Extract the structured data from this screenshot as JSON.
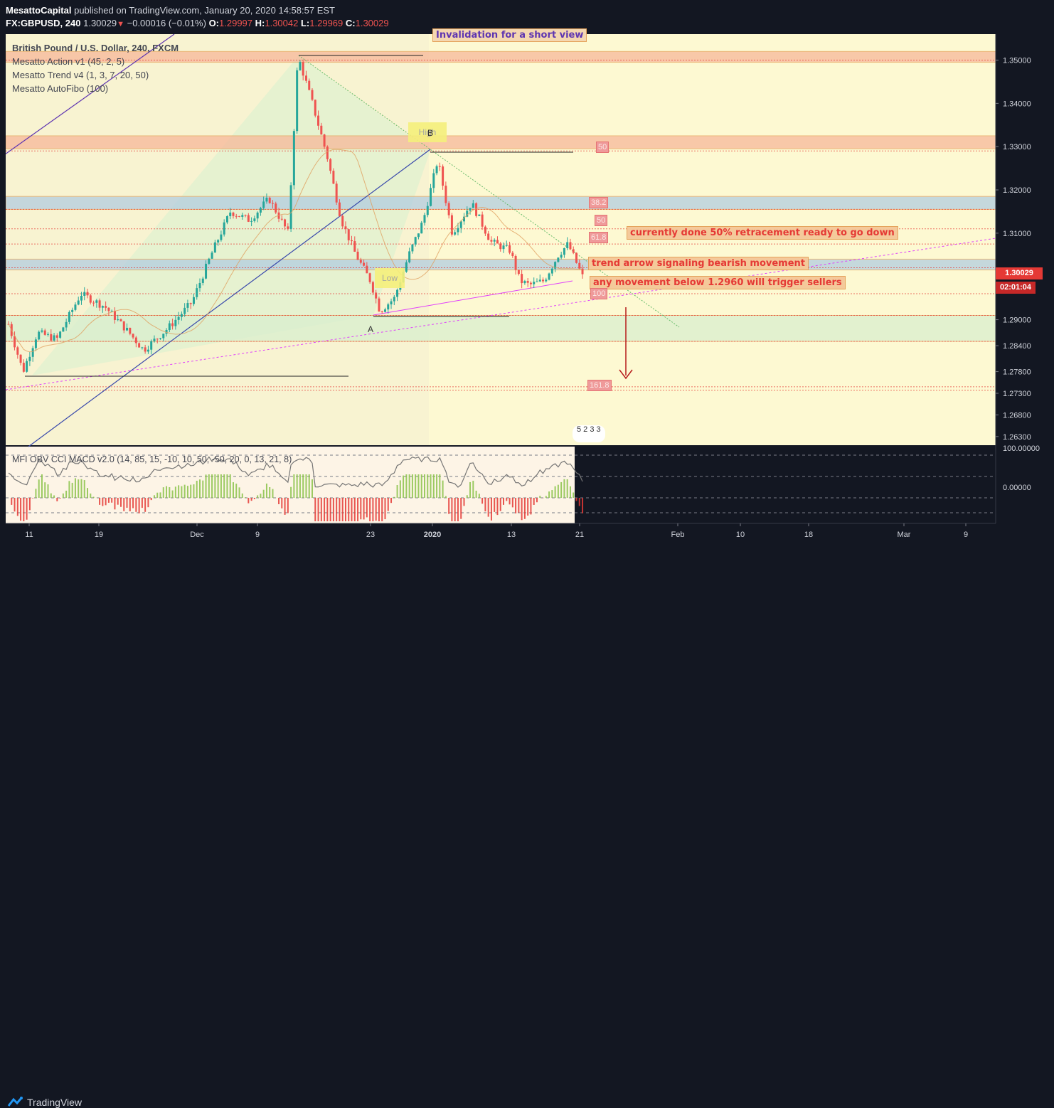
{
  "header": {
    "publisher": "MesattoCapital",
    "published_text": "published on TradingView.com, January 20, 2020 14:58:57 EST",
    "symbol": "FX:GBPUSD, 240",
    "last": "1.30029",
    "change": "−0.00016 (−0.01%)",
    "o_label": "O:",
    "o_value": "1.29997",
    "h_label": "H:",
    "h_value": "1.30042",
    "l_label": "L:",
    "l_value": "1.29969",
    "c_label": "C:",
    "c_value": "1.30029"
  },
  "legend": {
    "title": "British Pound / U.S. Dollar, 240, FXCM",
    "indicators": [
      "Mesatto Action v1 (45, 2, 5)",
      "Mesatto Trend v4 (1, 3, 7, 20, 50)",
      "Mesatto AutoFibo (100)"
    ]
  },
  "annotations": {
    "top_note": "Invalidation for a short view",
    "note1": "currently done 50% retracement ready to go down",
    "note2": "trend arrow signaling bearish movement",
    "note3": "any movement below 1.2960 will trigger sellers",
    "point_a": "A",
    "point_b": "B",
    "high_label": "High",
    "low_label": "Low",
    "fib_labels": [
      "50",
      "38.2",
      "50",
      "61.8",
      "100",
      "161.8"
    ]
  },
  "price_tag": "1.30029",
  "countdown": "02:01:04",
  "events_badge": "5 2 3 3",
  "oscillator": {
    "title": "MFI OBV CCI MACD v2.0 (14, 85, 15, -10, 10, 50, -50, 20, 0, 13, 21, 8)",
    "top_value": "100.00000",
    "zero_value": "0.00000"
  },
  "footer": {
    "brand": "TradingView"
  },
  "colors": {
    "background_dark": "#131722",
    "chart_bg": "#fdf9d2",
    "candle_up": "#26a69a",
    "candle_down": "#ef5350",
    "zone_orange": "#f7b89a",
    "zone_blue": "#b3cde0",
    "zone_green": "#d9efcf"
  },
  "chart_data": {
    "type": "candlestick",
    "symbol": "GBPUSD",
    "timeframe": "240",
    "y_ticks": [
      "1.35000",
      "1.34000",
      "1.33000",
      "1.32000",
      "1.31000",
      "1.30000",
      "1.29000",
      "1.28400",
      "1.27800",
      "1.27300",
      "1.26800",
      "1.26300"
    ],
    "x_ticks": [
      "11",
      "19",
      "Dec",
      "9",
      "23",
      "2020",
      "13",
      "21",
      "Feb",
      "10",
      "18",
      "Mar",
      "9"
    ],
    "ylim": [
      1.261,
      1.356
    ],
    "price_path": [
      [
        0,
        1.289
      ],
      [
        3,
        1.278
      ],
      [
        6,
        1.287
      ],
      [
        10,
        1.2855
      ],
      [
        15,
        1.296
      ],
      [
        20,
        1.293
      ],
      [
        25,
        1.287
      ],
      [
        28,
        1.283
      ],
      [
        33,
        1.288
      ],
      [
        38,
        1.294
      ],
      [
        42,
        1.305
      ],
      [
        46,
        1.315
      ],
      [
        50,
        1.313
      ],
      [
        54,
        1.318
      ],
      [
        58,
        1.31
      ],
      [
        60,
        1.351
      ],
      [
        63,
        1.34
      ],
      [
        66,
        1.328
      ],
      [
        69,
        1.313
      ],
      [
        72,
        1.305
      ],
      [
        75,
        1.299
      ],
      [
        77,
        1.292
      ],
      [
        80,
        1.295
      ],
      [
        83,
        1.305
      ],
      [
        86,
        1.313
      ],
      [
        89,
        1.327
      ],
      [
        92,
        1.31
      ],
      [
        96,
        1.317
      ],
      [
        100,
        1.308
      ],
      [
        104,
        1.306
      ],
      [
        106,
        1.299
      ],
      [
        108,
        1.298
      ],
      [
        111,
        1.299
      ],
      [
        114,
        1.305
      ],
      [
        116,
        1.3075
      ],
      [
        119,
        1.3
      ]
    ],
    "horizontal_levels": [
      1.35,
      1.329,
      1.3155,
      1.311,
      1.3075,
      1.302,
      1.296,
      1.291,
      1.285,
      1.2745,
      1.2737
    ],
    "oscillator": {
      "ylim": [
        -60,
        120
      ],
      "levels": [
        100,
        0
      ]
    }
  }
}
